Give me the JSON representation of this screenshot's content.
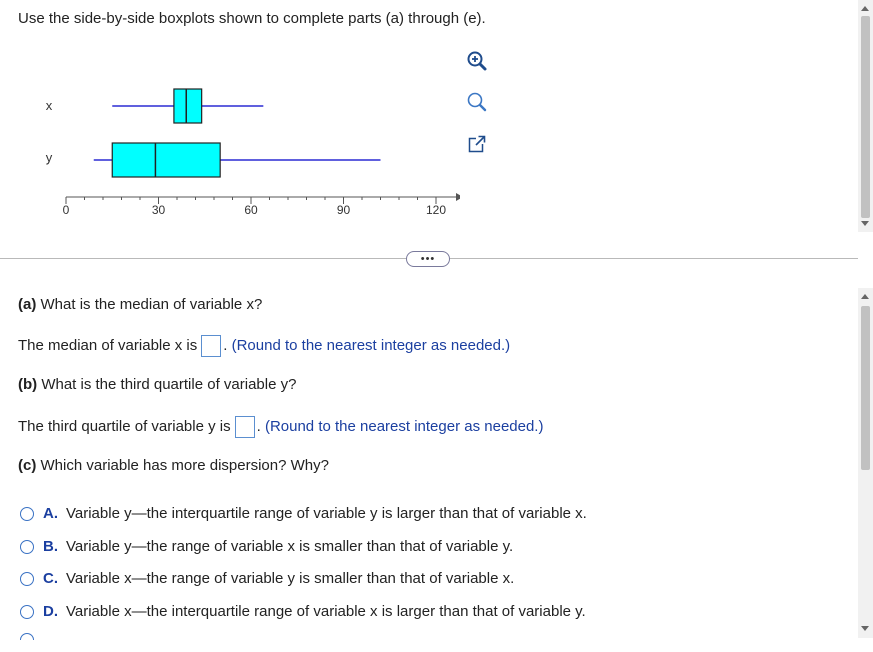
{
  "intro": "Use the side-by-side boxplots shown to complete parts (a) through (e).",
  "tools": {
    "zoom_in": "zoom-in-icon",
    "zoom_out": "zoom-out-icon",
    "popout": "popout-icon"
  },
  "chart_data": {
    "type": "boxplot",
    "orientation": "horizontal",
    "xlim": [
      0,
      120
    ],
    "xticks": [
      0,
      30,
      60,
      90,
      120
    ],
    "series": [
      {
        "name": "x",
        "min": 15,
        "q1": 35,
        "median": 39,
        "q3": 44,
        "max": 64
      },
      {
        "name": "y",
        "min": 9,
        "q1": 15,
        "median": 29,
        "q3": 50,
        "max": 102
      }
    ],
    "box_color": "#00ffff",
    "whisker_color": "#2b2bd4"
  },
  "expand_label": "•••",
  "questions": {
    "a": {
      "label": "(a)",
      "text": " What is the median of variable x?"
    },
    "a_answer": {
      "prefix": "The median of variable x is",
      "suffix": ".",
      "hint": "(Round to the nearest integer as needed.)"
    },
    "b": {
      "label": "(b)",
      "text": " What is the third quartile of variable y?"
    },
    "b_answer": {
      "prefix": "The third quartile of variable y is",
      "suffix": ".",
      "hint": "(Round to the nearest integer as needed.)"
    },
    "c": {
      "label": "(c)",
      "text": " Which variable has more dispersion? Why?"
    }
  },
  "options": [
    {
      "letter": "A.",
      "text": "Variable y—the interquartile range of variable y is larger than that of variable x."
    },
    {
      "letter": "B.",
      "text": "Variable y—the range of variable x is smaller than that of variable y."
    },
    {
      "letter": "C.",
      "text": "Variable x—the range of variable y is smaller than that of variable x."
    },
    {
      "letter": "D.",
      "text": "Variable x—the interquartile range of variable x is larger than that of variable y."
    }
  ]
}
